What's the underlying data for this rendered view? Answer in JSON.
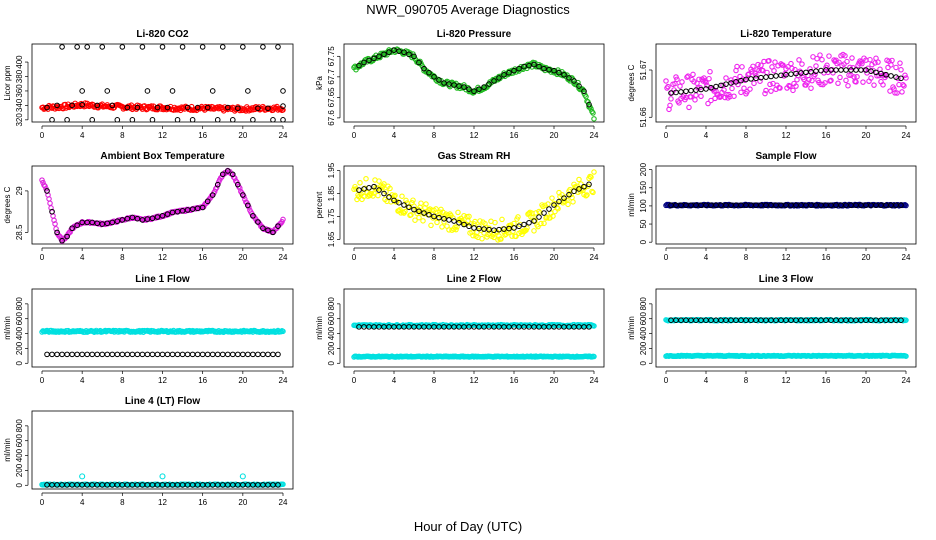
{
  "page": {
    "title": "NWR_090705  Average Diagnostics",
    "xlabel": "Hour of Day (UTC)"
  },
  "chart_data": [
    {
      "type": "scatter",
      "title": "Li-820 CO2",
      "ylabel": "Licor ppm",
      "x_ticks": [
        0,
        4,
        8,
        12,
        16,
        20,
        24
      ],
      "xlim": [
        0,
        24
      ],
      "yticks": [
        320,
        340,
        360,
        380,
        400
      ],
      "ylim": [
        317,
        425
      ],
      "series": [
        {
          "name": "all",
          "color": "#ff0000",
          "kind": "band",
          "start": [
            0,
            337
          ],
          "points": [
            [
              0,
              337
            ],
            [
              2,
              338
            ],
            [
              4,
              341
            ],
            [
              6,
              339
            ],
            [
              8,
              338
            ],
            [
              10,
              337
            ],
            [
              12,
              337
            ],
            [
              14,
              336
            ],
            [
              16,
              336
            ],
            [
              18,
              335
            ],
            [
              20,
              335
            ],
            [
              22,
              336
            ],
            [
              24,
              336
            ]
          ],
          "spread": 3
        },
        {
          "name": "hourly",
          "color": "#000000",
          "kind": "points",
          "points": [
            [
              0.5,
              337
            ],
            [
              1,
              320
            ],
            [
              1.5,
              340
            ],
            [
              2,
              421
            ],
            [
              2.5,
              320
            ],
            [
              3,
              340
            ],
            [
              3.5,
              421
            ],
            [
              4,
              341
            ],
            [
              4,
              360
            ],
            [
              4.5,
              421
            ],
            [
              5,
              320
            ],
            [
              5.5,
              340
            ],
            [
              6,
              421
            ],
            [
              6.5,
              360
            ],
            [
              7,
              340
            ],
            [
              7.5,
              320
            ],
            [
              8,
              421
            ],
            [
              8.5,
              337
            ],
            [
              9,
              320
            ],
            [
              9.5,
              337
            ],
            [
              10,
              421
            ],
            [
              10.5,
              360
            ],
            [
              11,
              320
            ],
            [
              11.5,
              337
            ],
            [
              12,
              421
            ],
            [
              12.5,
              337
            ],
            [
              13,
              360
            ],
            [
              13.5,
              320
            ],
            [
              14,
              421
            ],
            [
              14.5,
              337
            ],
            [
              15,
              320
            ],
            [
              15.5,
              337
            ],
            [
              16,
              421
            ],
            [
              16.5,
              337
            ],
            [
              17,
              360
            ],
            [
              17.5,
              320
            ],
            [
              18,
              421
            ],
            [
              18.5,
              337
            ],
            [
              19,
              320
            ],
            [
              19.5,
              336
            ],
            [
              20,
              421
            ],
            [
              20.5,
              360
            ],
            [
              21,
              320
            ],
            [
              21.5,
              336
            ],
            [
              22,
              421
            ],
            [
              22.5,
              336
            ],
            [
              23,
              320
            ],
            [
              23.5,
              421
            ],
            [
              24,
              360
            ],
            [
              24,
              339
            ],
            [
              24,
              320
            ]
          ]
        }
      ]
    },
    {
      "type": "scatter",
      "title": "Li-820 Pressure",
      "ylabel": "kPa",
      "x_ticks": [
        0,
        4,
        8,
        12,
        16,
        20,
        24
      ],
      "xlim": [
        0,
        24
      ],
      "yticks": [
        67.6,
        67.65,
        67.7,
        67.75
      ],
      "ylim": [
        67.59,
        67.78
      ],
      "series": [
        {
          "name": "all",
          "color": "#22bb22",
          "kind": "band",
          "points": [
            [
              0,
              67.72
            ],
            [
              1,
              67.735
            ],
            [
              2,
              67.745
            ],
            [
              3,
              67.755
            ],
            [
              4,
              67.765
            ],
            [
              5,
              67.76
            ],
            [
              6,
              67.75
            ],
            [
              7,
              67.72
            ],
            [
              8,
              67.7
            ],
            [
              9,
              67.685
            ],
            [
              10,
              67.68
            ],
            [
              11,
              67.675
            ],
            [
              12,
              67.665
            ],
            [
              13,
              67.675
            ],
            [
              14,
              67.69
            ],
            [
              15,
              67.705
            ],
            [
              16,
              67.715
            ],
            [
              17,
              67.725
            ],
            [
              18,
              67.73
            ],
            [
              19,
              67.72
            ],
            [
              20,
              67.715
            ],
            [
              21,
              67.705
            ],
            [
              22,
              67.69
            ],
            [
              23,
              67.665
            ],
            [
              24,
              67.6
            ]
          ],
          "spread": 0.006
        },
        {
          "name": "hourly",
          "color": "#000000",
          "kind": "curve"
        }
      ]
    },
    {
      "type": "scatter",
      "title": "Li-820 Temperature",
      "ylabel": "degrees C",
      "x_ticks": [
        0,
        4,
        8,
        12,
        16,
        20,
        24
      ],
      "xlim": [
        0,
        24
      ],
      "yticks": [
        51.66,
        51.67
      ],
      "ylim": [
        51.659,
        51.6755
      ],
      "series": [
        {
          "name": "all",
          "color": "#ee22ee",
          "kind": "band",
          "points": [
            [
              0,
              51.665
            ],
            [
              4,
              51.666
            ],
            [
              8,
              51.668
            ],
            [
              12,
              51.669
            ],
            [
              16,
              51.67
            ],
            [
              20,
              51.67
            ],
            [
              24,
              51.668
            ]
          ],
          "spread": 0.0035
        },
        {
          "name": "hourly",
          "color": "#000000",
          "kind": "curve"
        }
      ]
    },
    {
      "type": "scatter",
      "title": "Ambient Box Temperature",
      "ylabel": "degrees C",
      "x_ticks": [
        0,
        4,
        8,
        12,
        16,
        20,
        24
      ],
      "xlim": [
        0,
        24
      ],
      "yticks": [
        28.5,
        29.0
      ],
      "ylim": [
        28.36,
        29.3
      ],
      "series": [
        {
          "name": "all",
          "color": "#dd22dd",
          "kind": "band",
          "points": [
            [
              0,
              29.13
            ],
            [
              0.5,
              29.0
            ],
            [
              1,
              28.75
            ],
            [
              1.5,
              28.5
            ],
            [
              2,
              28.4
            ],
            [
              2.5,
              28.45
            ],
            [
              3,
              28.55
            ],
            [
              4,
              28.62
            ],
            [
              5,
              28.62
            ],
            [
              6,
              28.6
            ],
            [
              7,
              28.62
            ],
            [
              8,
              28.65
            ],
            [
              9,
              28.68
            ],
            [
              10,
              28.65
            ],
            [
              11,
              28.67
            ],
            [
              12,
              28.7
            ],
            [
              13,
              28.74
            ],
            [
              14,
              28.76
            ],
            [
              15,
              28.78
            ],
            [
              16,
              28.8
            ],
            [
              17,
              28.95
            ],
            [
              18,
              29.2
            ],
            [
              18.5,
              29.24
            ],
            [
              19,
              29.2
            ],
            [
              20,
              28.95
            ],
            [
              21,
              28.7
            ],
            [
              22,
              28.55
            ],
            [
              23,
              28.5
            ],
            [
              24,
              28.65
            ]
          ],
          "spread": 0.01
        },
        {
          "name": "hourly",
          "color": "#000000",
          "kind": "curve"
        }
      ]
    },
    {
      "type": "scatter",
      "title": "Gas Stream RH",
      "ylabel": "percent",
      "x_ticks": [
        0,
        4,
        8,
        12,
        16,
        20,
        24
      ],
      "xlim": [
        0,
        24
      ],
      "yticks": [
        1.65,
        1.75,
        1.85,
        1.95
      ],
      "ylim": [
        1.63,
        1.97
      ],
      "series": [
        {
          "name": "all",
          "color": "#ffff00",
          "kind": "band",
          "points": [
            [
              0,
              1.86
            ],
            [
              2,
              1.88
            ],
            [
              4,
              1.82
            ],
            [
              6,
              1.78
            ],
            [
              8,
              1.75
            ],
            [
              10,
              1.73
            ],
            [
              12,
              1.7
            ],
            [
              14,
              1.69
            ],
            [
              16,
              1.7
            ],
            [
              18,
              1.73
            ],
            [
              20,
              1.8
            ],
            [
              22,
              1.86
            ],
            [
              24,
              1.9
            ]
          ],
          "spread": 0.045
        },
        {
          "name": "hourly",
          "color": "#000000",
          "kind": "curve"
        }
      ]
    },
    {
      "type": "scatter",
      "title": "Sample Flow",
      "ylabel": "ml/min",
      "x_ticks": [
        0,
        4,
        8,
        12,
        16,
        20,
        24
      ],
      "xlim": [
        0,
        24
      ],
      "yticks": [
        0,
        50,
        100,
        150,
        200
      ],
      "ylim": [
        -5,
        210
      ],
      "series": [
        {
          "name": "all",
          "color": "#000080",
          "kind": "band",
          "points": [
            [
              0,
              102
            ],
            [
              24,
              102
            ]
          ],
          "spread": 2
        },
        {
          "name": "hourly",
          "color": "#000000",
          "kind": "curve"
        }
      ]
    },
    {
      "type": "scatter",
      "title": "Line 1 Flow",
      "ylabel": "ml/min",
      "x_ticks": [
        0,
        4,
        8,
        12,
        16,
        20,
        24
      ],
      "xlim": [
        0,
        24
      ],
      "yticks": [
        0,
        200,
        400,
        600,
        800
      ],
      "ylim": [
        -50,
        1000
      ],
      "series": [
        {
          "name": "cyan",
          "color": "#00e0e0",
          "kind": "band",
          "points": [
            [
              0,
              430
            ],
            [
              24,
              430
            ]
          ],
          "spread": 12
        },
        {
          "name": "cyan2",
          "color": "#00e0e0",
          "kind": "none"
        },
        {
          "name": "hourly",
          "color": "#000000",
          "kind": "flat",
          "y": 120
        }
      ]
    },
    {
      "type": "scatter",
      "title": "Line 2 Flow",
      "ylabel": "ml/min",
      "x_ticks": [
        0,
        4,
        8,
        12,
        16,
        20,
        24
      ],
      "xlim": [
        0,
        24
      ],
      "yticks": [
        0,
        200,
        400,
        600,
        800
      ],
      "ylim": [
        -50,
        1000
      ],
      "series": [
        {
          "name": "cyan",
          "color": "#00e0e0",
          "kind": "band",
          "points": [
            [
              0,
              510
            ],
            [
              24,
              510
            ]
          ],
          "spread": 10
        },
        {
          "name": "cyan2",
          "color": "#00e0e0",
          "kind": "band",
          "points": [
            [
              0,
              90
            ],
            [
              24,
              90
            ]
          ],
          "spread": 6
        },
        {
          "name": "hourly",
          "color": "#000000",
          "kind": "flat",
          "y": 490
        }
      ]
    },
    {
      "type": "scatter",
      "title": "Line 3 Flow",
      "ylabel": "ml/min",
      "x_ticks": [
        0,
        4,
        8,
        12,
        16,
        20,
        24
      ],
      "xlim": [
        0,
        24
      ],
      "yticks": [
        0,
        200,
        400,
        600,
        800
      ],
      "ylim": [
        -50,
        1000
      ],
      "series": [
        {
          "name": "cyan",
          "color": "#00e0e0",
          "kind": "band",
          "points": [
            [
              0,
              580
            ],
            [
              24,
              580
            ]
          ],
          "spread": 8
        },
        {
          "name": "cyan2",
          "color": "#00e0e0",
          "kind": "band",
          "points": [
            [
              0,
              100
            ],
            [
              24,
              100
            ]
          ],
          "spread": 6
        },
        {
          "name": "hourly",
          "color": "#000000",
          "kind": "flat",
          "y": 580
        }
      ]
    },
    {
      "type": "scatter",
      "title": "Line 4 (LT) Flow",
      "ylabel": "ml/min",
      "x_ticks": [
        0,
        4,
        8,
        12,
        16,
        20,
        24
      ],
      "xlim": [
        0,
        24
      ],
      "yticks": [
        0,
        200,
        400,
        600,
        800
      ],
      "ylim": [
        -50,
        1000
      ],
      "series": [
        {
          "name": "cyan",
          "color": "#00e0e0",
          "kind": "band",
          "points": [
            [
              0,
              10
            ],
            [
              24,
              10
            ]
          ],
          "spread": 5
        },
        {
          "name": "cyan2",
          "color": "#00e0e0",
          "kind": "spikes",
          "points": [
            [
              4,
              120
            ],
            [
              12,
              120
            ],
            [
              20,
              120
            ]
          ]
        },
        {
          "name": "hourly",
          "color": "#000000",
          "kind": "flat",
          "y": 5
        }
      ]
    }
  ]
}
